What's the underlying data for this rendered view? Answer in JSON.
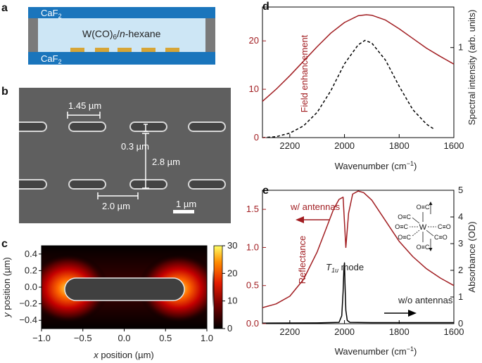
{
  "panels": {
    "a": {
      "label": "a",
      "window_top": "CaF",
      "window_bottom": "CaF",
      "window_sub": "2",
      "solution": "W(CO)",
      "solution_sub": "6",
      "solution_mid": "/",
      "solution_italic": "n",
      "solution_rest": "-hexane",
      "colors": {
        "window": "#1a75bc",
        "liquid": "#cde6f5",
        "antenna": "#d7a536",
        "spacer": "#7a7a7a"
      }
    },
    "b": {
      "label": "b",
      "length_label": "1.45 µm",
      "width_label": "0.3 µm",
      "vgap_label": "2.8 µm",
      "hgap_label": "2.0 µm",
      "scale_label": "1 µm"
    },
    "c": {
      "label": "c",
      "xlabel_var": "x",
      "xlabel_rest": " position (µm)",
      "ylabel_var": "y",
      "ylabel_rest": " position (µm)",
      "xticks": [
        "−1.0",
        "−0.5",
        "0.0",
        "0.5",
        "1.0"
      ],
      "yticks": [
        "0.4",
        "0.2",
        "0.0",
        "−0.2",
        "−0.4"
      ],
      "colorbar_ticks": [
        "30",
        "20",
        "10",
        "0"
      ]
    },
    "d": {
      "label": "d",
      "xlabel": "Wavenumber (cm",
      "xlabel_sup": "−1",
      "xlabel_end": ")",
      "ylabel_left": "Field enhancement",
      "ylabel_right": "Spectral intensity (arb. units)",
      "xticks": [
        "2200",
        "2000",
        "1800",
        "1600"
      ],
      "yticks_left": [
        "0",
        "10",
        "20"
      ],
      "yticks_right": [
        "1"
      ]
    },
    "e": {
      "label": "e",
      "xlabel": "Wavenumber (cm",
      "xlabel_sup": "−1",
      "xlabel_end": ")",
      "ylabel_left": "Reflectance",
      "ylabel_right": "Absorbance (OD)",
      "xticks": [
        "2200",
        "2000",
        "1800",
        "1600"
      ],
      "yticks_left": [
        "0.0",
        "0.5",
        "1.0",
        "1.5"
      ],
      "yticks_right": [
        "0",
        "1",
        "2",
        "3",
        "4",
        "5"
      ],
      "with_antennas": "w/ antennas",
      "without_antennas": "w/o antennas",
      "mode_T": "T",
      "mode_sub": "1u",
      "mode_rest": " mode",
      "molecule_center": "W",
      "molecule_ligand_h_left": "O≡C",
      "molecule_ligand_h_right": "C≡O",
      "molecule_ligand_v": "O≡C"
    }
  },
  "chart_data": [
    {
      "panel": "d",
      "type": "line",
      "xlim": [
        2300,
        1600
      ],
      "series": [
        {
          "axis": "left",
          "ylim": [
            0,
            27
          ],
          "color": "#a11d21",
          "style": "solid",
          "x": [
            2300,
            2250,
            2200,
            2150,
            2100,
            2050,
            2000,
            1950,
            1920,
            1900,
            1850,
            1800,
            1750,
            1700,
            1650,
            1600
          ],
          "y": [
            7.5,
            10.0,
            12.8,
            15.8,
            18.8,
            21.6,
            23.8,
            25.2,
            25.4,
            25.3,
            24.3,
            22.5,
            20.5,
            18.5,
            16.8,
            15.2
          ]
        },
        {
          "axis": "right",
          "ylim": [
            0,
            1.45
          ],
          "color": "#000000",
          "style": "dashed",
          "x": [
            2300,
            2250,
            2200,
            2150,
            2100,
            2050,
            2000,
            1950,
            1925,
            1900,
            1850,
            1800,
            1750,
            1700,
            1670
          ],
          "y": [
            0.0,
            0.01,
            0.05,
            0.13,
            0.28,
            0.52,
            0.82,
            1.03,
            1.08,
            1.05,
            0.86,
            0.57,
            0.31,
            0.15,
            0.09
          ]
        }
      ]
    },
    {
      "panel": "e",
      "type": "line",
      "xlim": [
        2300,
        1600
      ],
      "series": [
        {
          "axis": "left",
          "ylim": [
            0,
            1.75
          ],
          "color": "#a11d21",
          "style": "solid",
          "x": [
            2300,
            2250,
            2200,
            2150,
            2100,
            2070,
            2040,
            2020,
            2005,
            1995,
            1985,
            1970,
            1950,
            1930,
            1900,
            1850,
            1800,
            1750,
            1700,
            1650,
            1600
          ],
          "y": [
            0.21,
            0.26,
            0.36,
            0.58,
            0.94,
            1.22,
            1.5,
            1.63,
            1.66,
            1.0,
            1.45,
            1.7,
            1.74,
            1.72,
            1.62,
            1.35,
            1.08,
            0.88,
            0.72,
            0.6,
            0.5
          ]
        },
        {
          "axis": "right",
          "ylim": [
            0,
            5
          ],
          "color": "#000000",
          "style": "solid",
          "x": [
            2300,
            2100,
            2020,
            2010,
            2005,
            2002,
            2000,
            1998,
            1995,
            1990,
            1980,
            1900,
            1800,
            1700,
            1600
          ],
          "y": [
            0.02,
            0.03,
            0.05,
            0.3,
            1.2,
            2.1,
            2.28,
            1.5,
            0.5,
            0.12,
            0.05,
            0.04,
            0.04,
            0.04,
            0.04
          ]
        }
      ]
    },
    {
      "panel": "c",
      "type": "heatmap",
      "xlim": [
        -1.0,
        1.0
      ],
      "ylim": [
        -0.5,
        0.5
      ],
      "colorbar_range": [
        0,
        30
      ]
    }
  ]
}
